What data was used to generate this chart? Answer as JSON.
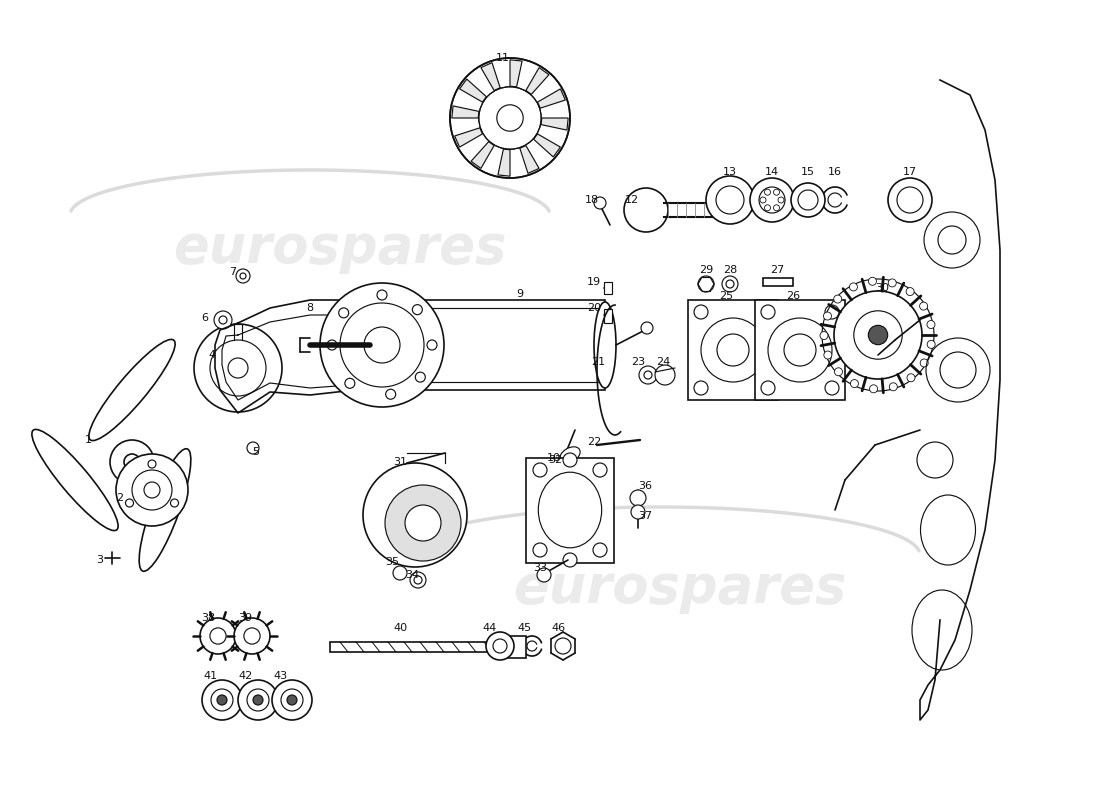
{
  "bg_color": "#ffffff",
  "line_color": "#111111",
  "lw": 1.2,
  "fig_w": 11.0,
  "fig_h": 8.0,
  "dpi": 100,
  "watermark": "eurospares",
  "wm_color": "#cccccc",
  "wm_alpha": 0.38
}
